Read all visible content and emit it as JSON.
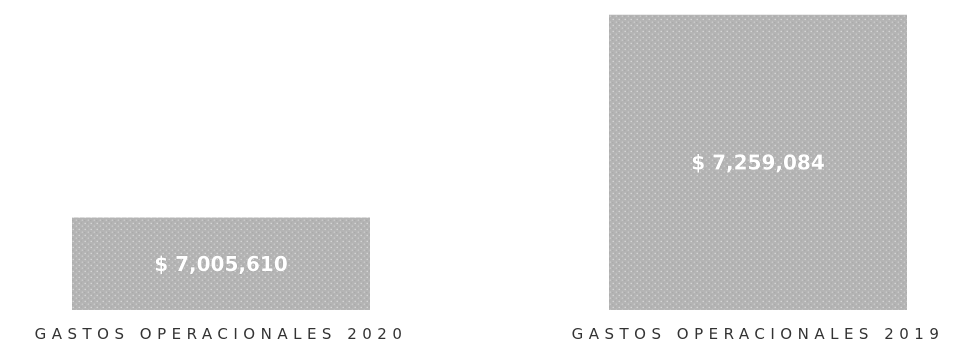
{
  "chart_data": {
    "type": "bar",
    "categories": [
      "GASTOS OPERACIONALES 2020",
      "GASTOS OPERACIONALES 2019"
    ],
    "values": [
      7005610,
      7259084
    ],
    "data_labels": [
      "$ 7,005,610",
      "$ 7,259,084"
    ],
    "ylim": [
      6890000,
      7265000
    ],
    "grid": false,
    "legend": "none",
    "bar_color": "#b3b3b3",
    "label_color": "#ffffff",
    "category_label_color": "#333333"
  }
}
